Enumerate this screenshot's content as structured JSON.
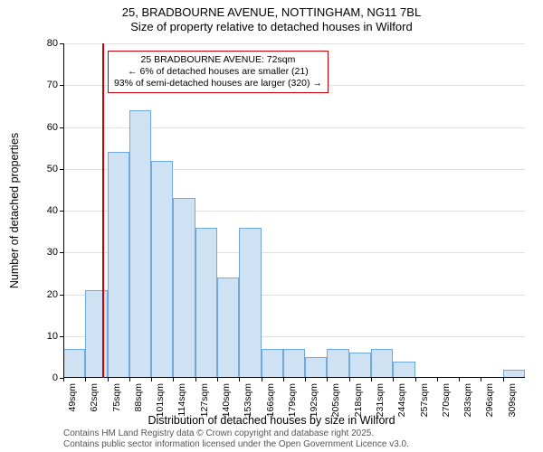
{
  "title": {
    "line1": "25, BRADBOURNE AVENUE, NOTTINGHAM, NG11 7BL",
    "line2": "Size of property relative to detached houses in Wilford"
  },
  "axes": {
    "ylabel": "Number of detached properties",
    "xlabel": "Distribution of detached houses by size in Wilford",
    "ymin": 0,
    "ymax": 80,
    "ytick_step": 10,
    "ytick_labels": [
      "0",
      "10",
      "20",
      "30",
      "40",
      "50",
      "60",
      "70",
      "80"
    ],
    "xtick_labels": [
      "49sqm",
      "62sqm",
      "75sqm",
      "88sqm",
      "101sqm",
      "114sqm",
      "127sqm",
      "140sqm",
      "153sqm",
      "166sqm",
      "179sqm",
      "192sqm",
      "205sqm",
      "218sqm",
      "231sqm",
      "244sqm",
      "257sqm",
      "270sqm",
      "283sqm",
      "296sqm",
      "309sqm"
    ]
  },
  "chart": {
    "type": "histogram",
    "bin_start": 49,
    "bin_width": 13,
    "bin_counts": [
      7,
      21,
      54,
      64,
      52,
      43,
      36,
      24,
      36,
      7,
      7,
      5,
      7,
      6,
      7,
      4,
      0,
      0,
      0,
      0,
      2
    ],
    "bar_fill": "#cfe2f3",
    "bar_stroke": "#6fa8dc",
    "background": "#ffffff",
    "grid_color": "#e0e0e0",
    "label_fontsize": 12.5,
    "tick_fontsize": 11,
    "title_fontsize": 13
  },
  "marker": {
    "value_sqm": 72,
    "color": "#cc0000"
  },
  "annotation": {
    "line1": "25 BRADBOURNE AVENUE: 72sqm",
    "line2": "← 6% of detached houses are smaller (21)",
    "line3": "93% of semi-detached houses are larger (320) →",
    "border_color": "#cc0000",
    "bg_color": "#ffffff",
    "text_color": "#000000"
  },
  "attribution": {
    "line1": "Contains HM Land Registry data © Crown copyright and database right 2025.",
    "line2": "Contains public sector information licensed under the Open Government Licence v3.0."
  }
}
